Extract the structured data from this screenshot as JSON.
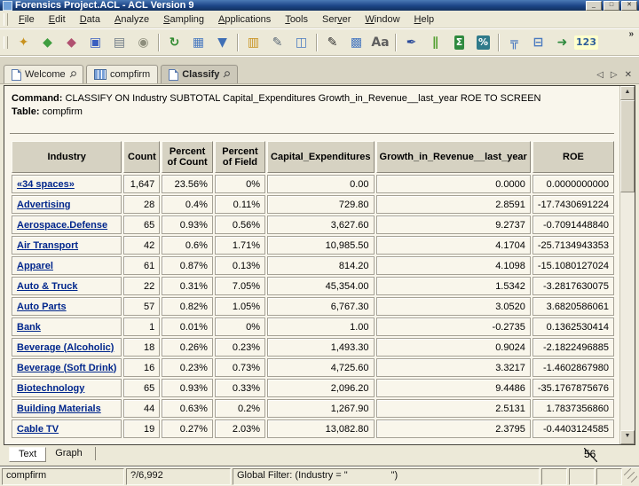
{
  "window": {
    "title": "Forensics Project.ACL - ACL Version 9",
    "controls": {
      "minimize": "_",
      "maximize": "□",
      "close": "✕"
    }
  },
  "menu": {
    "items": [
      {
        "label": "File",
        "u": 0
      },
      {
        "label": "Edit",
        "u": 0
      },
      {
        "label": "Data",
        "u": 0
      },
      {
        "label": "Analyze",
        "u": 0
      },
      {
        "label": "Sampling",
        "u": 0
      },
      {
        "label": "Applications",
        "u": 0
      },
      {
        "label": "Tools",
        "u": 0
      },
      {
        "label": "Server",
        "u": 3
      },
      {
        "label": "Window",
        "u": 0
      },
      {
        "label": "Help",
        "u": 0
      }
    ]
  },
  "toolbar": {
    "overflow": "»",
    "items": [
      {
        "name": "new-document-icon",
        "glyph": "✦",
        "color": "#c8921e"
      },
      {
        "name": "open-project-icon",
        "glyph": "◆",
        "color": "#3f9d3f"
      },
      {
        "name": "close-project-icon",
        "glyph": "◆",
        "color": "#b05070"
      },
      {
        "name": "save-project-icon",
        "glyph": "▣",
        "color": "#3a5fc0"
      },
      {
        "name": "print-icon",
        "glyph": "▤",
        "color": "#6f7b86"
      },
      {
        "name": "search-icon",
        "glyph": "◉",
        "color": "#8d8d7c"
      },
      {
        "type": "sep"
      },
      {
        "name": "refresh-icon",
        "glyph": "↻",
        "color": "#2f8a2f"
      },
      {
        "name": "table-view-icon",
        "glyph": "▦",
        "color": "#4a7ac0"
      },
      {
        "name": "filter-icon",
        "glyph": "▼",
        "color": "#3f6fb5"
      },
      {
        "type": "sep"
      },
      {
        "name": "copy-log-icon",
        "glyph": "▥",
        "color": "#c8921e"
      },
      {
        "name": "edit-view-icon",
        "glyph": "✎",
        "color": "#5c6a78"
      },
      {
        "name": "new-table-icon",
        "glyph": "◫",
        "color": "#4a7ac0"
      },
      {
        "type": "sep"
      },
      {
        "name": "edit-table-icon",
        "glyph": "✎",
        "color": "#2f2f2f"
      },
      {
        "name": "table-properties-icon",
        "glyph": "▩",
        "color": "#4a7ac0"
      },
      {
        "name": "font-icon",
        "glyph": "Aa",
        "color": "#5f5f5f"
      },
      {
        "type": "sep"
      },
      {
        "name": "annotate-icon",
        "glyph": "✒",
        "color": "#2a4a9a"
      },
      {
        "name": "bar-chart-icon",
        "glyph": "∥",
        "color": "#55a033"
      },
      {
        "name": "sum-icon",
        "glyph": "Σ",
        "color": "#ffffff",
        "bg": "#2f8a3f"
      },
      {
        "name": "percent-icon",
        "glyph": "%",
        "color": "#ffffff",
        "bg": "#2f7a8a"
      },
      {
        "type": "sep"
      },
      {
        "name": "classify-icon",
        "glyph": "╦",
        "color": "#4a7ac0"
      },
      {
        "name": "histogram-icon",
        "glyph": "⊟",
        "color": "#4a7ac0"
      },
      {
        "name": "export-icon",
        "glyph": "➜",
        "color": "#2f8a3f"
      },
      {
        "name": "numbers-icon",
        "glyph": "123",
        "color": "#2f5f9a",
        "bg": "#ffffcc"
      }
    ]
  },
  "tabs": {
    "items": [
      {
        "label": "Welcome",
        "icon": "page",
        "pin": "⚲",
        "active": false
      },
      {
        "label": "compfirm",
        "icon": "table",
        "pin": "",
        "active": false
      },
      {
        "label": "Classify",
        "icon": "page",
        "pin": "⚲",
        "active": true
      }
    ],
    "prev": "◁",
    "next": "▷",
    "close": "✕"
  },
  "command_panel": {
    "command_label": "Command:",
    "command_text": "CLASSIFY ON Industry SUBTOTAL Capital_Expenditures Growth_in_Revenue__last_year ROE TO SCREEN",
    "table_label": "Table:",
    "table_name": "compfirm"
  },
  "results_table": {
    "columns": [
      "Industry",
      "Count",
      "Percent of Count",
      "Percent of Field",
      "Capital_Expenditures",
      "Growth_in_Revenue__last_year",
      "ROE"
    ],
    "rows": [
      [
        "«34 spaces»",
        "1,647",
        "23.56%",
        "0%",
        "0.00",
        "0.0000",
        "0.0000000000"
      ],
      [
        "Advertising",
        "28",
        "0.4%",
        "0.11%",
        "729.80",
        "2.8591",
        "-17.7430691224"
      ],
      [
        "Aerospace.Defense",
        "65",
        "0.93%",
        "0.56%",
        "3,627.60",
        "9.2737",
        "-0.7091448840"
      ],
      [
        "Air Transport",
        "42",
        "0.6%",
        "1.71%",
        "10,985.50",
        "4.1704",
        "-25.7134943353"
      ],
      [
        "Apparel",
        "61",
        "0.87%",
        "0.13%",
        "814.20",
        "4.1098",
        "-15.1080127024"
      ],
      [
        "Auto & Truck",
        "22",
        "0.31%",
        "7.05%",
        "45,354.00",
        "1.5342",
        "-3.2817630075"
      ],
      [
        "Auto Parts",
        "57",
        "0.82%",
        "1.05%",
        "6,767.30",
        "3.0520",
        "3.6820586061"
      ],
      [
        "Bank",
        "1",
        "0.01%",
        "0%",
        "1.00",
        "-0.2735",
        "0.1362530414"
      ],
      [
        "Beverage (Alcoholic)",
        "18",
        "0.26%",
        "0.23%",
        "1,493.30",
        "0.9024",
        "-2.1822496885"
      ],
      [
        "Beverage (Soft Drink)",
        "16",
        "0.23%",
        "0.73%",
        "4,725.60",
        "3.3217",
        "-1.4602867980"
      ],
      [
        "Biotechnology",
        "65",
        "0.93%",
        "0.33%",
        "2,096.20",
        "9.4486",
        "-35.1767875676"
      ],
      [
        "Building Materials",
        "44",
        "0.63%",
        "0.2%",
        "1,267.90",
        "2.5131",
        "1.7837356860"
      ],
      [
        "Cable TV",
        "19",
        "0.27%",
        "2.03%",
        "13,082.80",
        "2.3795",
        "-0.4403124585"
      ]
    ]
  },
  "view_tabs": {
    "items": [
      "Text",
      "Graph"
    ]
  },
  "status_bar": {
    "table_name": "compfirm",
    "record_count": "?/6,992",
    "global_filter": "Global Filter: (Industry = \"                \")"
  },
  "scrollbar": {
    "up": "▲",
    "down": "▼"
  },
  "overlay": {
    "slide_number": "56"
  },
  "colors": {
    "titlebar": "#1c4587",
    "link": "#00268c",
    "chrome_bg": "#ece9d8",
    "header_bg": "#d6d2c2",
    "cell_bg": "#f9f6eb"
  }
}
